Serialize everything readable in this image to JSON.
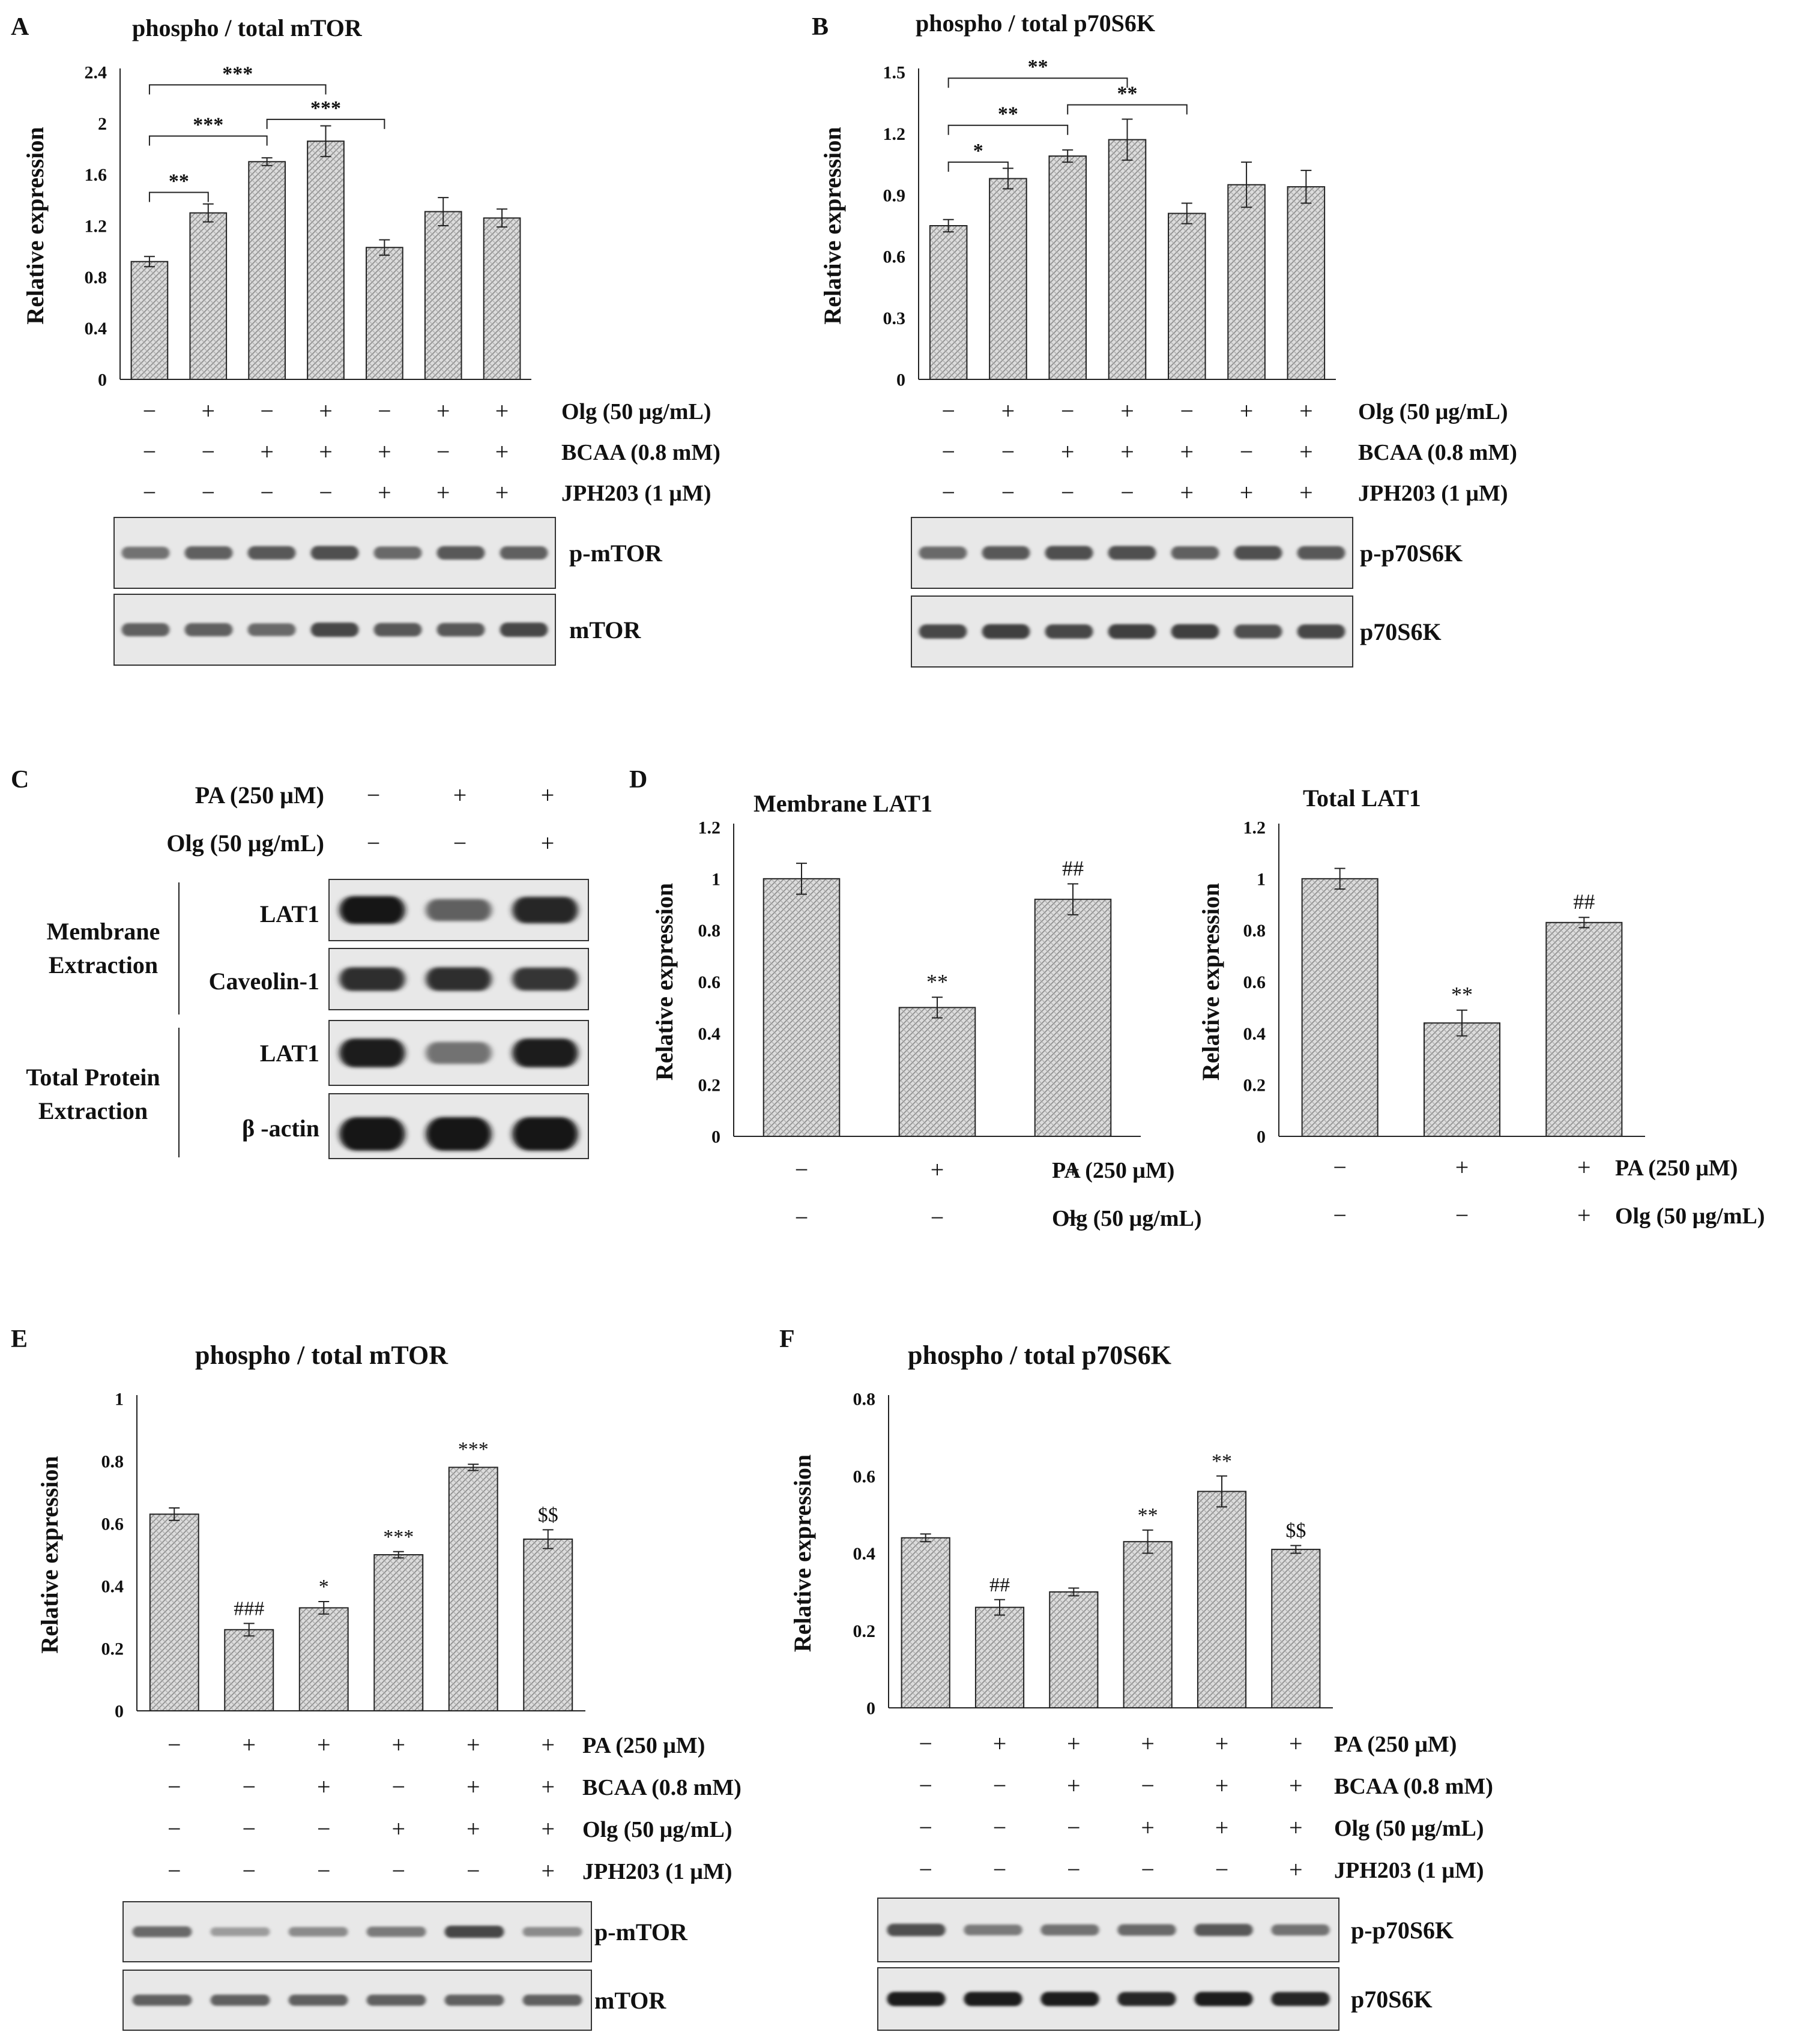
{
  "colors": {
    "bar_fill": "#d8d8d8",
    "bar_stroke": "#222222",
    "text": "#111111"
  },
  "panels": [
    {
      "letter": "A",
      "chart_data": {
        "type": "bar",
        "title": "phospho / total mTOR",
        "ylabel": "Relative expression",
        "ylim": [
          0,
          2.4
        ],
        "yticks": [
          "0",
          "0.4",
          "0.8",
          "1.2",
          "1.6",
          "2",
          "2.4"
        ],
        "values": [
          0.92,
          1.3,
          1.7,
          1.86,
          1.03,
          1.31,
          1.26
        ],
        "errors": [
          0.04,
          0.07,
          0.03,
          0.12,
          0.06,
          0.11,
          0.07
        ],
        "annotations": [],
        "brackets": [
          {
            "from": 0,
            "to": 1,
            "label": "**",
            "y": 1.46
          },
          {
            "from": 0,
            "to": 2,
            "label": "***",
            "y": 1.9
          },
          {
            "from": 0,
            "to": 3,
            "label": "***",
            "y": 2.3
          },
          {
            "from": 2,
            "to": 4,
            "label": "***",
            "y": 2.03
          }
        ],
        "conditions": [
          {
            "label": "Olg (50 μg/mL)",
            "signs": [
              "−",
              "+",
              "−",
              "+",
              "−",
              "+",
              "+"
            ]
          },
          {
            "label": "BCAA (0.8 mM)",
            "signs": [
              "−",
              "−",
              "+",
              "+",
              "+",
              "−",
              "+"
            ]
          },
          {
            "label": "JPH203 (1 μM)",
            "signs": [
              "−",
              "−",
              "−",
              "−",
              "+",
              "+",
              "+"
            ]
          }
        ]
      },
      "blots": [
        "p-mTOR",
        "mTOR"
      ]
    },
    {
      "letter": "B",
      "chart_data": {
        "type": "bar",
        "title": "phospho / total p70S6K",
        "ylabel": "Relative expression",
        "ylim": [
          0,
          1.5
        ],
        "yticks": [
          "0",
          "0.3",
          "0.6",
          "0.9",
          "1.2",
          "1.5"
        ],
        "values": [
          0.75,
          0.98,
          1.09,
          1.17,
          0.81,
          0.95,
          0.94
        ],
        "errors": [
          0.03,
          0.05,
          0.03,
          0.1,
          0.05,
          0.11,
          0.08
        ],
        "annotations": [],
        "brackets": [
          {
            "from": 0,
            "to": 1,
            "label": "*",
            "y": 1.06
          },
          {
            "from": 0,
            "to": 2,
            "label": "**",
            "y": 1.24
          },
          {
            "from": 0,
            "to": 3,
            "label": "**",
            "y": 1.47
          },
          {
            "from": 2,
            "to": 4,
            "label": "**",
            "y": 1.34
          }
        ],
        "conditions": [
          {
            "label": "Olg (50 μg/mL)",
            "signs": [
              "−",
              "+",
              "−",
              "+",
              "−",
              "+",
              "+"
            ]
          },
          {
            "label": "BCAA (0.8 mM)",
            "signs": [
              "−",
              "−",
              "+",
              "+",
              "+",
              "−",
              "+"
            ]
          },
          {
            "label": "JPH203 (1 μM)",
            "signs": [
              "−",
              "−",
              "−",
              "−",
              "+",
              "+",
              "+"
            ]
          }
        ]
      },
      "blots": [
        "p-p70S6K",
        "p70S6K"
      ]
    },
    {
      "letter": "C",
      "conditions": [
        {
          "label": "PA (250 μM)",
          "signs": [
            "−",
            "+",
            "+"
          ]
        },
        {
          "label": "Olg (50 μg/mL)",
          "signs": [
            "−",
            "−",
            "+"
          ]
        }
      ],
      "groups": [
        {
          "label": "Membrane Extraction",
          "blots": [
            "LAT1",
            "Caveolin-1"
          ]
        },
        {
          "label": "Total Protein Extraction",
          "blots": [
            "LAT1",
            "β -actin"
          ]
        }
      ]
    },
    {
      "letter": "D",
      "chart_data": [
        {
          "type": "bar",
          "title": "Membrane LAT1",
          "ylabel": "Relative expression",
          "ylim": [
            0,
            1.2
          ],
          "yticks": [
            "0",
            "0.2",
            "0.4",
            "0.6",
            "0.8",
            "1",
            "1.2"
          ],
          "values": [
            1.0,
            0.5,
            0.92
          ],
          "errors": [
            0.06,
            0.04,
            0.06
          ],
          "annotations": [
            "",
            "**",
            "##"
          ],
          "brackets": [],
          "conditions": [
            {
              "label": "PA (250 μM)",
              "signs": [
                "−",
                "+",
                "+"
              ]
            },
            {
              "label": "Olg (50 μg/mL)",
              "signs": [
                "−",
                "−",
                "+"
              ]
            }
          ]
        },
        {
          "type": "bar",
          "title": "Total LAT1",
          "ylabel": "Relative expression",
          "ylim": [
            0,
            1.2
          ],
          "yticks": [
            "0",
            "0.2",
            "0.4",
            "0.6",
            "0.8",
            "1",
            "1.2"
          ],
          "values": [
            1.0,
            0.44,
            0.83
          ],
          "errors": [
            0.04,
            0.05,
            0.02
          ],
          "annotations": [
            "",
            "**",
            "##"
          ],
          "brackets": [],
          "conditions": [
            {
              "label": "PA (250 μM)",
              "signs": [
                "−",
                "+",
                "+"
              ]
            },
            {
              "label": "Olg (50 μg/mL)",
              "signs": [
                "−",
                "−",
                "+"
              ]
            }
          ]
        }
      ]
    },
    {
      "letter": "E",
      "chart_data": {
        "type": "bar",
        "title": "phospho  /  total mTOR",
        "ylabel": "Relative expression",
        "ylim": [
          0,
          1
        ],
        "yticks": [
          "0",
          "0.2",
          "0.4",
          "0.6",
          "0.8",
          "1"
        ],
        "values": [
          0.63,
          0.26,
          0.33,
          0.5,
          0.78,
          0.55
        ],
        "errors": [
          0.02,
          0.02,
          0.02,
          0.01,
          0.01,
          0.03
        ],
        "annotations": [
          "",
          "###",
          "*",
          "***",
          "***",
          "$$"
        ],
        "brackets": [],
        "conditions": [
          {
            "label": "PA (250 μM)",
            "signs": [
              "−",
              "+",
              "+",
              "+",
              "+",
              "+"
            ]
          },
          {
            "label": "BCAA (0.8 mM)",
            "signs": [
              "−",
              "−",
              "+",
              "−",
              "+",
              "+"
            ]
          },
          {
            "label": "Olg (50 μg/mL)",
            "signs": [
              "−",
              "−",
              "−",
              "+",
              "+",
              "+"
            ]
          },
          {
            "label": "JPH203 (1 μM)",
            "signs": [
              "−",
              "−",
              "−",
              "−",
              "−",
              "+"
            ]
          }
        ]
      },
      "blots": [
        "p-mTOR",
        "mTOR"
      ]
    },
    {
      "letter": "F",
      "chart_data": {
        "type": "bar",
        "title": "phospho  /  total p70S6K",
        "ylabel": "Relative expression",
        "ylim": [
          0,
          0.8
        ],
        "yticks": [
          "0",
          "0.2",
          "0.4",
          "0.6",
          "0.8"
        ],
        "values": [
          0.44,
          0.26,
          0.3,
          0.43,
          0.56,
          0.41
        ],
        "errors": [
          0.01,
          0.02,
          0.01,
          0.03,
          0.04,
          0.01
        ],
        "annotations": [
          "",
          "##",
          "",
          "**",
          "**",
          "$$"
        ],
        "brackets": [],
        "conditions": [
          {
            "label": "PA (250 μM)",
            "signs": [
              "−",
              "+",
              "+",
              "+",
              "+",
              "+"
            ]
          },
          {
            "label": "BCAA (0.8 mM)",
            "signs": [
              "−",
              "−",
              "+",
              "−",
              "+",
              "+"
            ]
          },
          {
            "label": "Olg (50 μg/mL)",
            "signs": [
              "−",
              "−",
              "−",
              "+",
              "+",
              "+"
            ]
          },
          {
            "label": "JPH203 (1 μM)",
            "signs": [
              "−",
              "−",
              "−",
              "−",
              "−",
              "+"
            ]
          }
        ]
      },
      "blots": [
        "p-p70S6K",
        "p70S6K"
      ]
    }
  ]
}
